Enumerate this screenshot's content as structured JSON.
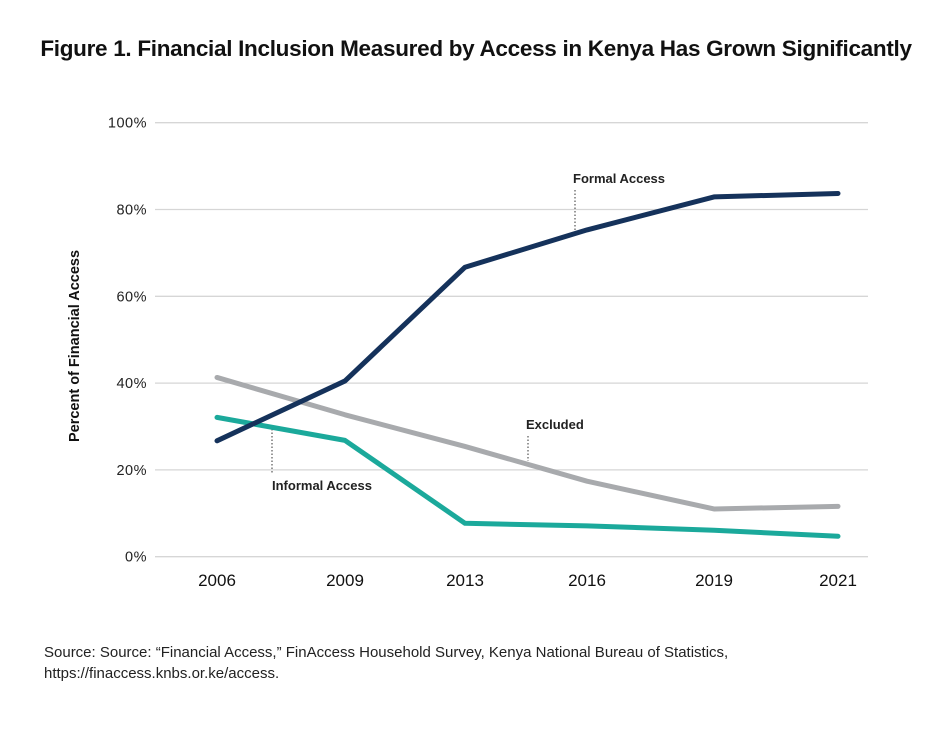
{
  "title": "Figure 1. Financial Inclusion Measured by Access in Kenya Has Grown Significantly",
  "source": "Source: Source: “Financial Access,” FinAccess Household Survey, Kenya National Bureau of Statistics, https://finaccess.knbs.or.ke/access.",
  "chart_data": {
    "type": "line",
    "title": "Figure 1. Financial Inclusion Measured by Access in Kenya Has Grown Significantly",
    "xlabel": "",
    "ylabel": "Percent of Financial Access",
    "categories": [
      "2006",
      "2009",
      "2013",
      "2016",
      "2019",
      "2021"
    ],
    "ylim": [
      0,
      100
    ],
    "yticks": [
      0,
      20,
      40,
      60,
      80,
      100
    ],
    "ytick_labels": [
      "0%",
      "20%",
      "40%",
      "60%",
      "80%",
      "100%"
    ],
    "grid": true,
    "series": [
      {
        "name": "Formal Access",
        "color": "#15325b",
        "values": [
          26.7,
          40.5,
          66.7,
          75.3,
          82.9,
          83.7
        ]
      },
      {
        "name": "Excluded",
        "color": "#a8aaad",
        "values": [
          41.3,
          32.7,
          25.4,
          17.4,
          11.0,
          11.6
        ]
      },
      {
        "name": "Informal Access",
        "color": "#1ba99b",
        "values": [
          32.1,
          26.8,
          7.7,
          7.1,
          6.1,
          4.7
        ]
      }
    ]
  }
}
